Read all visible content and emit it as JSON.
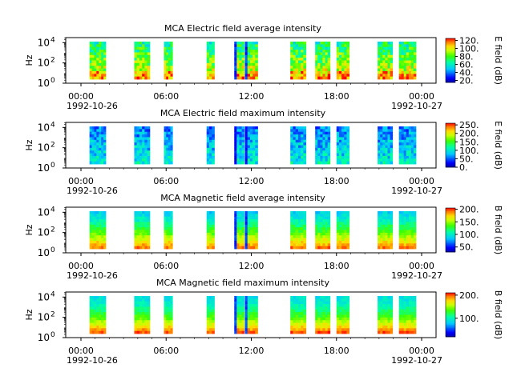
{
  "chart_data": [
    {
      "type": "heatmap",
      "title": "MCA  Electric field average intensity",
      "ylabel": "Hz",
      "colorbar_label": "E field (dB)",
      "colorbar_ticks": [
        "20.",
        "40.",
        "60.",
        "80.",
        "100.",
        "120."
      ],
      "colorbar_range": [
        15,
        125
      ],
      "yscale": "log",
      "ylim_exponent": [
        0,
        4.5
      ],
      "y_ticks": [
        {
          "base": "10",
          "exp": "0"
        },
        {
          "base": "10",
          "exp": "2"
        },
        {
          "base": "10",
          "exp": "4"
        }
      ],
      "x_range_hours": [
        0,
        24
      ],
      "x_ticks": [
        {
          "hour": 0,
          "label": "00:00"
        },
        {
          "hour": 6,
          "label": "06:00"
        },
        {
          "hour": 12,
          "label": "12:00"
        },
        {
          "hour": 18,
          "label": "18:00"
        },
        {
          "hour": 24,
          "label": "00:00"
        }
      ],
      "date_labels": {
        "start": "1992-10-26",
        "end": "1992-10-27"
      },
      "profile": "e_avg",
      "show_xlabels": true
    },
    {
      "type": "heatmap",
      "title": "MCA  Electric field maximum intensity",
      "ylabel": "Hz",
      "colorbar_label": "E field (dB)",
      "colorbar_ticks": [
        "0.",
        "50.",
        "100.",
        "150.",
        "200.",
        "250."
      ],
      "colorbar_range": [
        0,
        260
      ],
      "yscale": "log",
      "ylim_exponent": [
        0,
        4.5
      ],
      "y_ticks": [
        {
          "base": "10",
          "exp": "0"
        },
        {
          "base": "10",
          "exp": "2"
        },
        {
          "base": "10",
          "exp": "4"
        }
      ],
      "x_range_hours": [
        0,
        24
      ],
      "x_ticks": [
        {
          "hour": 0,
          "label": "00:00"
        },
        {
          "hour": 6,
          "label": "06:00"
        },
        {
          "hour": 12,
          "label": "12:00"
        },
        {
          "hour": 18,
          "label": "18:00"
        },
        {
          "hour": 24,
          "label": "00:00"
        }
      ],
      "date_labels": {
        "start": "1992-10-26",
        "end": "1992-10-27"
      },
      "profile": "e_max",
      "show_xlabels": true
    },
    {
      "type": "heatmap",
      "title": "MCA  Magnetic field average intensity",
      "ylabel": "Hz",
      "colorbar_label": "B field (dB)",
      "colorbar_ticks": [
        "50.",
        "100.",
        "150.",
        "200."
      ],
      "colorbar_range": [
        30,
        205
      ],
      "yscale": "log",
      "ylim_exponent": [
        0,
        4.5
      ],
      "y_ticks": [
        {
          "base": "10",
          "exp": "0"
        },
        {
          "base": "10",
          "exp": "2"
        },
        {
          "base": "10",
          "exp": "4"
        }
      ],
      "x_range_hours": [
        0,
        24
      ],
      "x_ticks": [
        {
          "hour": 0,
          "label": "00:00"
        },
        {
          "hour": 6,
          "label": "06:00"
        },
        {
          "hour": 12,
          "label": "12:00"
        },
        {
          "hour": 18,
          "label": "18:00"
        },
        {
          "hour": 24,
          "label": "00:00"
        }
      ],
      "date_labels": {
        "start": "1992-10-26",
        "end": "1992-10-27"
      },
      "profile": "b_avg",
      "show_xlabels": true
    },
    {
      "type": "heatmap",
      "title": "MCA  Magnetic field maximum intensity",
      "ylabel": "Hz",
      "colorbar_label": "B field (dB)",
      "colorbar_ticks": [
        "100.",
        "200."
      ],
      "colorbar_range": [
        20,
        210
      ],
      "yscale": "log",
      "ylim_exponent": [
        0,
        4.5
      ],
      "y_ticks": [
        {
          "base": "10",
          "exp": "0"
        },
        {
          "base": "10",
          "exp": "2"
        },
        {
          "base": "10",
          "exp": "4"
        }
      ],
      "x_range_hours": [
        0,
        24
      ],
      "x_ticks": [
        {
          "hour": 0,
          "label": "00:00"
        },
        {
          "hour": 6,
          "label": "06:00"
        },
        {
          "hour": 12,
          "label": "12:00"
        },
        {
          "hour": 18,
          "label": "18:00"
        },
        {
          "hour": 24,
          "label": "00:00"
        }
      ],
      "date_labels": {
        "start": "1992-10-26",
        "end": "1992-10-27"
      },
      "profile": "b_max",
      "show_xlabels": true
    }
  ],
  "data_segments_hours": [
    [
      0.6,
      1.75
    ],
    [
      3.75,
      4.85
    ],
    [
      5.85,
      6.45
    ],
    [
      8.85,
      9.4
    ],
    [
      10.8,
      11.5
    ],
    [
      11.55,
      12.45
    ],
    [
      14.75,
      15.85
    ],
    [
      16.5,
      17.55
    ],
    [
      18.0,
      18.9
    ],
    [
      20.9,
      21.95
    ],
    [
      22.4,
      23.6
    ]
  ]
}
